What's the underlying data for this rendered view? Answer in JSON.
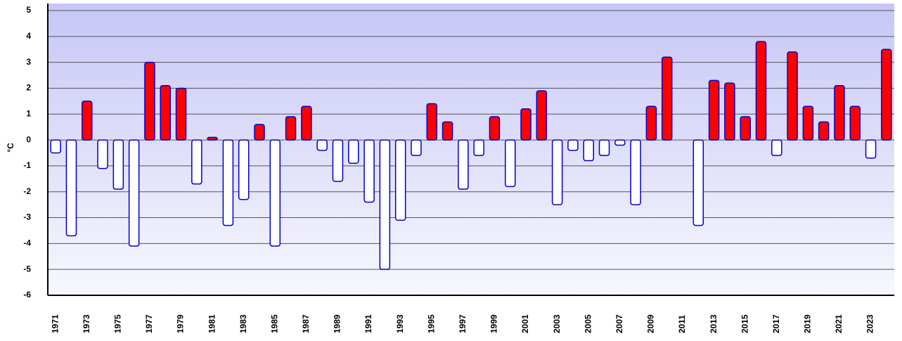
{
  "chart_data": {
    "type": "bar",
    "y_label": "°C",
    "categories": [
      "1971",
      null,
      "1973",
      null,
      "1975",
      null,
      "1977",
      null,
      "1979",
      null,
      "1981",
      null,
      "1983",
      null,
      "1985",
      null,
      "1987",
      null,
      "1989",
      null,
      "1991",
      null,
      "1993",
      null,
      "1995",
      null,
      "1997",
      null,
      "1999",
      null,
      "2001",
      null,
      "2003",
      null,
      "2005",
      null,
      "2007",
      null,
      "2009",
      null,
      "2011",
      null,
      "2013",
      null,
      "2015",
      null,
      "2017",
      null,
      "2019",
      null,
      "2021",
      null,
      "2023",
      null
    ],
    "values": [
      -0.5,
      -3.7,
      1.5,
      -1.1,
      -1.9,
      -4.1,
      3.0,
      2.1,
      2.0,
      -1.7,
      0.1,
      -3.3,
      -2.3,
      0.6,
      -4.1,
      0.9,
      1.3,
      -0.4,
      -1.6,
      -0.9,
      -2.4,
      -5.0,
      -3.1,
      -0.6,
      1.4,
      0.7,
      -1.9,
      -0.6,
      0.9,
      -1.8,
      1.2,
      1.9,
      -2.5,
      -0.4,
      -0.8,
      -0.6,
      -0.2,
      -2.5,
      1.3,
      3.2,
      0,
      -3.3,
      2.3,
      2.2,
      0.9,
      3.8,
      -0.6,
      3.4,
      1.3,
      0.7,
      2.1,
      1.3,
      -0.7,
      3.5
    ],
    "positive_color": "#ff0000",
    "negative_color": "#ffffff",
    "edge_color": "#0000cc",
    "ylim": [
      -6,
      5
    ],
    "yticks": [
      -6,
      -5,
      -4,
      -3,
      -2,
      -1,
      0,
      1,
      2,
      3,
      4,
      5
    ],
    "grid": true
  }
}
